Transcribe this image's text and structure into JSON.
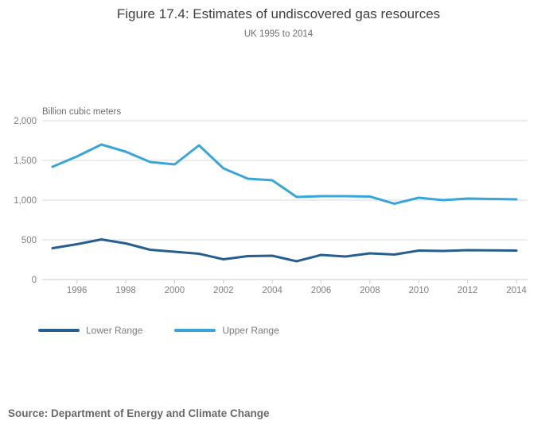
{
  "title": "Figure 17.4: Estimates of undiscovered gas resources",
  "subtitle": "UK 1995 to 2014",
  "y_axis_title": "Billion cubic meters",
  "source": "Source: Department of Energy and Climate Change",
  "colors": {
    "lower_range": "#265f8f",
    "upper_range": "#38a6da",
    "gridline": "#d9d9d9",
    "axis_line": "#c6ccd0",
    "tick_text": "#808080",
    "title_text": "#3f3f3f",
    "subtitle_text": "#6e6e6e"
  },
  "legend": {
    "items": [
      {
        "label": "Lower Range",
        "series_index": 0
      },
      {
        "label": "Upper Range",
        "series_index": 1
      }
    ]
  },
  "chart_data": {
    "type": "line",
    "title": "Figure 17.4: Estimates of undiscovered gas resources",
    "subtitle": "UK 1995 to 2014",
    "xlabel": "",
    "ylabel": "Billion cubic meters",
    "ylim": [
      0,
      2000
    ],
    "grid": "horizontal",
    "legend_position": "bottom-left",
    "x": [
      1995,
      1996,
      1997,
      1998,
      1999,
      2000,
      2001,
      2002,
      2003,
      2004,
      2005,
      2006,
      2007,
      2008,
      2009,
      2010,
      2011,
      2012,
      2013,
      2014
    ],
    "x_ticks": [
      1996,
      1998,
      2000,
      2002,
      2004,
      2006,
      2008,
      2010,
      2012,
      2014
    ],
    "y_ticks": [
      {
        "value": 0,
        "label": "0"
      },
      {
        "value": 500,
        "label": "500"
      },
      {
        "value": 1000,
        "label": "1,000"
      },
      {
        "value": 1500,
        "label": "1,500"
      },
      {
        "value": 2000,
        "label": "2,000"
      }
    ],
    "series": [
      {
        "name": "Lower Range",
        "color": "#265f8f",
        "values": [
          395,
          445,
          505,
          455,
          375,
          350,
          325,
          255,
          295,
          300,
          230,
          310,
          290,
          330,
          315,
          365,
          360,
          370,
          367,
          365
        ]
      },
      {
        "name": "Upper Range",
        "color": "#38a6da",
        "values": [
          1420,
          1550,
          1700,
          1610,
          1480,
          1450,
          1690,
          1400,
          1270,
          1250,
          1040,
          1050,
          1050,
          1045,
          955,
          1030,
          1000,
          1020,
          1015,
          1010
        ]
      }
    ]
  }
}
